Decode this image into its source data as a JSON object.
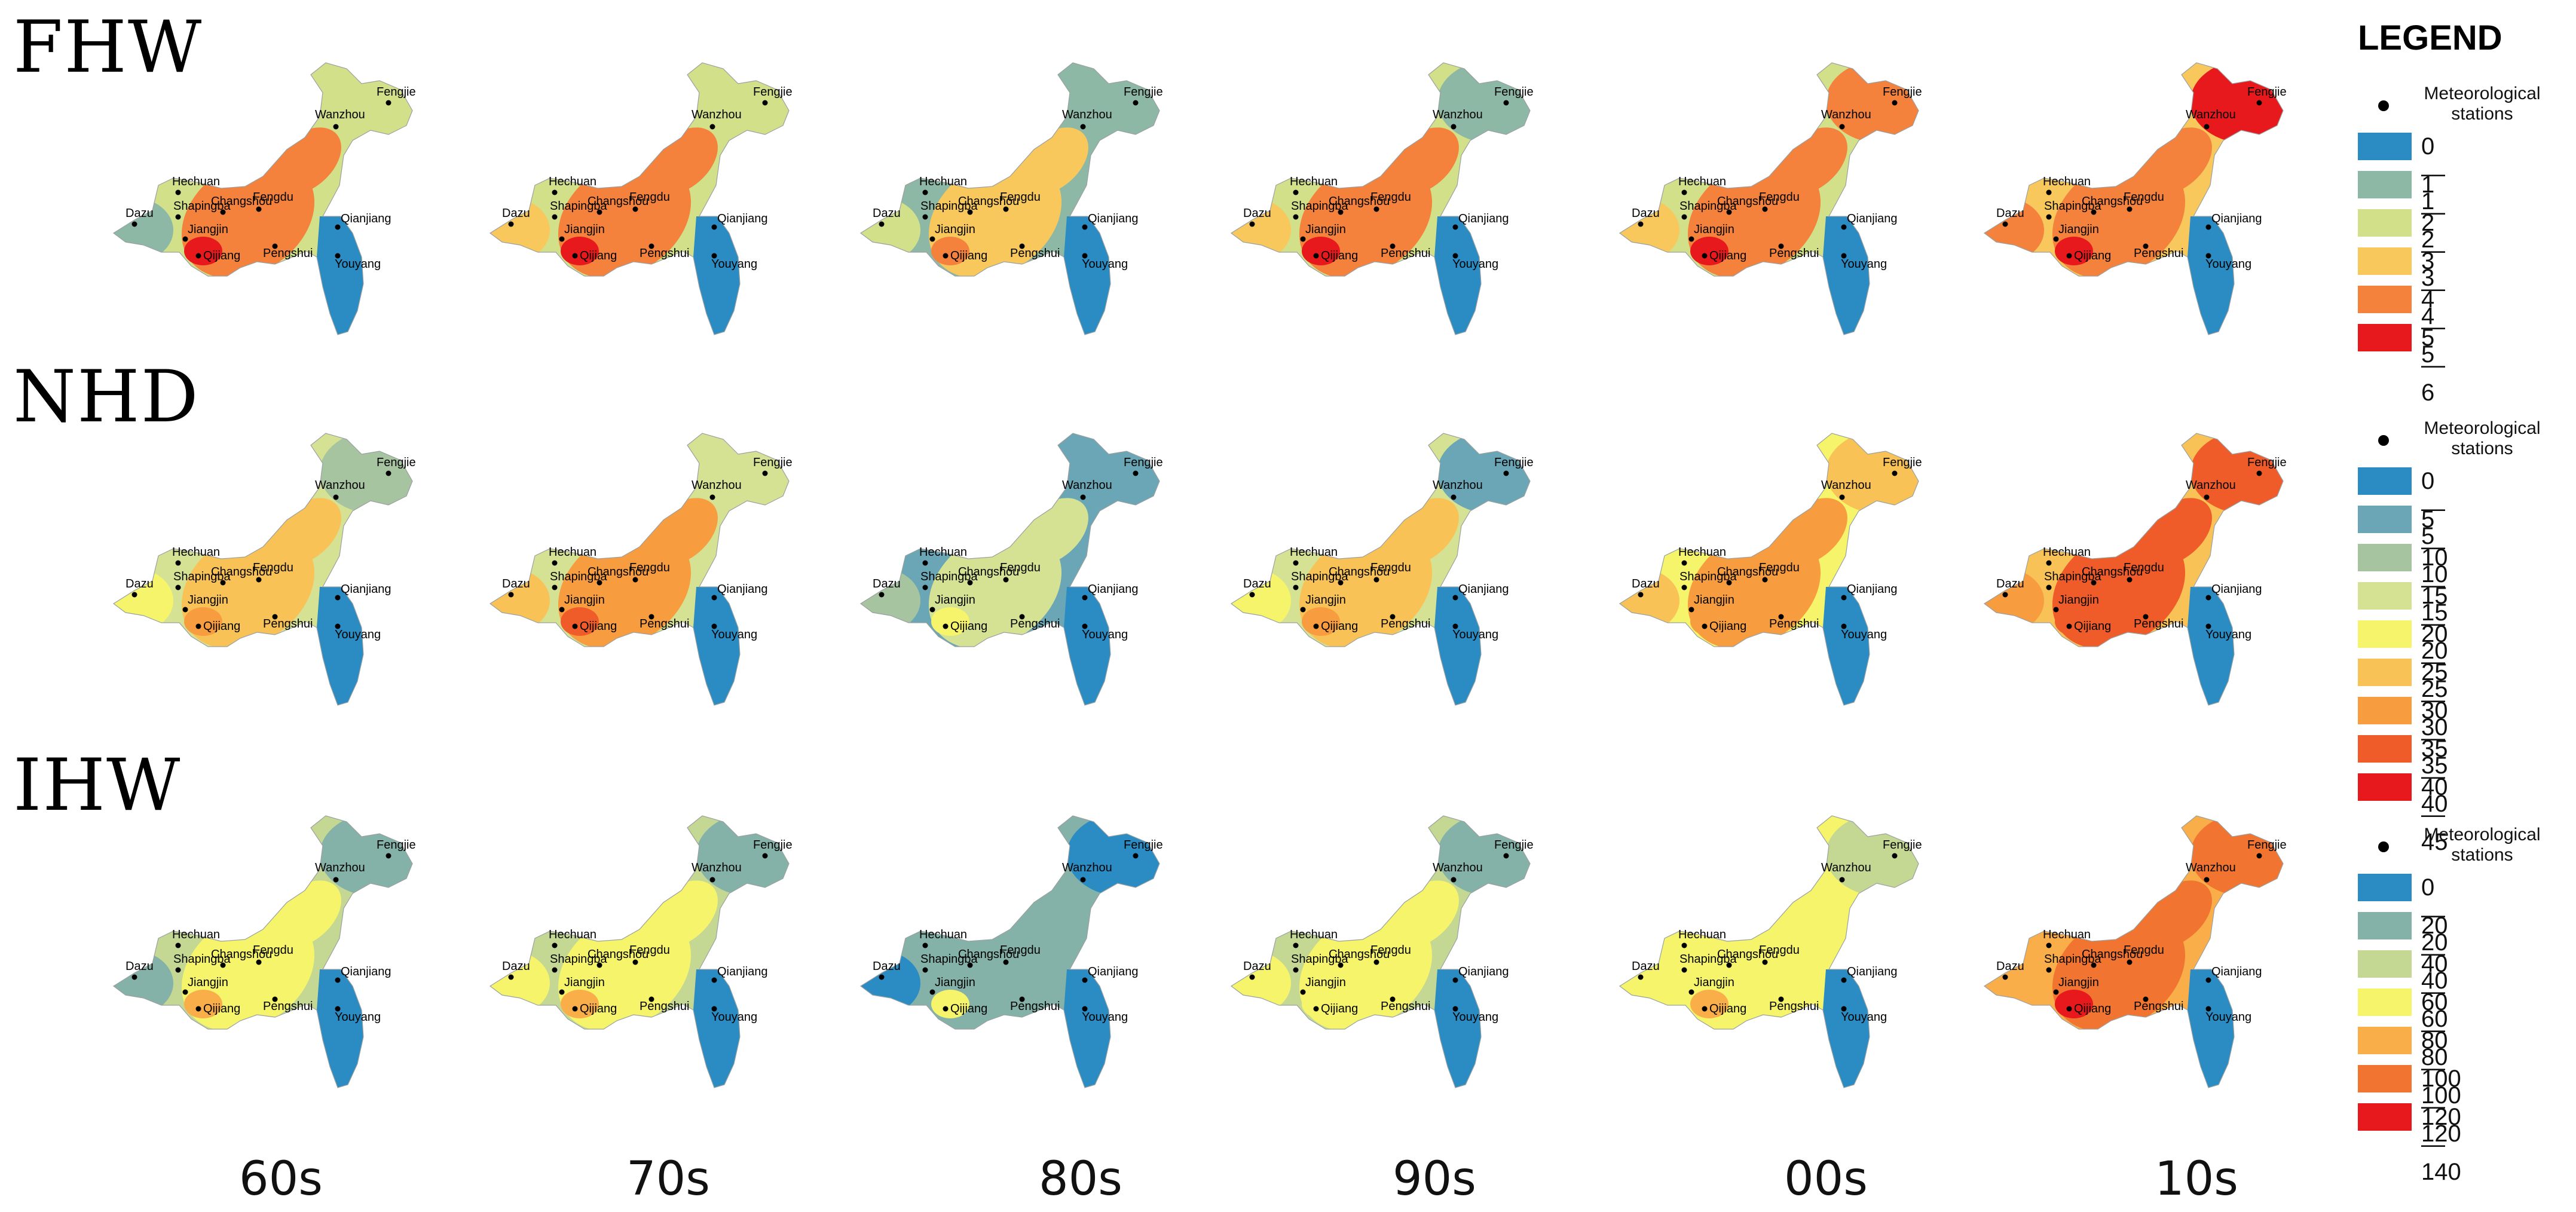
{
  "rows": [
    {
      "key": "FHW",
      "label": "FHW"
    },
    {
      "key": "NHD",
      "label": "NHD"
    },
    {
      "key": "IHW",
      "label": "IHW"
    }
  ],
  "decades": [
    "60s",
    "70s",
    "80s",
    "90s",
    "00s",
    "10s"
  ],
  "legend": {
    "title": "LEGEND",
    "station_label": "Meteorological stations",
    "blocks": [
      {
        "row": "FHW",
        "classes": [
          {
            "label": "0—1",
            "color": "#2b8cc4"
          },
          {
            "label": "1—2",
            "color": "#8db8a6"
          },
          {
            "label": "2—3",
            "color": "#d3e08a"
          },
          {
            "label": "3—4",
            "color": "#f8c85c"
          },
          {
            "label": "4—5",
            "color": "#f4823c"
          },
          {
            "label": "5—6",
            "color": "#e8191c"
          }
        ]
      },
      {
        "row": "NHD",
        "classes": [
          {
            "label": "0—5",
            "color": "#2b8cc4"
          },
          {
            "label": "5—10",
            "color": "#6aa6b6"
          },
          {
            "label": "10—15",
            "color": "#a6c4a0"
          },
          {
            "label": "15—20",
            "color": "#d6e293"
          },
          {
            "label": "20—25",
            "color": "#f6f46a"
          },
          {
            "label": "25—30",
            "color": "#f9c257"
          },
          {
            "label": "30—35",
            "color": "#f79c3f"
          },
          {
            "label": "35—40",
            "color": "#ef5c2a"
          },
          {
            "label": "40—45",
            "color": "#e8191c"
          }
        ]
      },
      {
        "row": "IHW",
        "classes": [
          {
            "label": "0—20",
            "color": "#2b8cc4"
          },
          {
            "label": "20—40",
            "color": "#84b2a8"
          },
          {
            "label": "40—60",
            "color": "#c4d894"
          },
          {
            "label": "60—80",
            "color": "#f6f46a"
          },
          {
            "label": "80—100",
            "color": "#f9ae4a"
          },
          {
            "label": "100—120",
            "color": "#f17530"
          },
          {
            "label": "120—140",
            "color": "#e8191c"
          }
        ]
      }
    ]
  },
  "stations": [
    "Fengjie",
    "Wanzhou",
    "Hechuan",
    "Changshou",
    "Fengdu",
    "Dazu",
    "Shapingba",
    "Jiangjin",
    "Qijiang",
    "Pengshui",
    "Qianjiang",
    "Youyang"
  ],
  "maps": [
    {
      "row": "FHW",
      "decade": "60s",
      "base": 2,
      "west": 1,
      "central": 4,
      "northeast": 2,
      "southeast": 0,
      "hot": 5
    },
    {
      "row": "FHW",
      "decade": "70s",
      "base": 2,
      "west": 3,
      "central": 4,
      "northeast": 2,
      "southeast": 0,
      "hot": 5
    },
    {
      "row": "FHW",
      "decade": "80s",
      "base": 1,
      "west": 2,
      "central": 3,
      "northeast": 1,
      "southeast": 0,
      "hot": 4
    },
    {
      "row": "FHW",
      "decade": "90s",
      "base": 2,
      "west": 3,
      "central": 4,
      "northeast": 1,
      "southeast": 0,
      "hot": 5
    },
    {
      "row": "FHW",
      "decade": "00s",
      "base": 2,
      "west": 3,
      "central": 4,
      "northeast": 4,
      "southeast": 0,
      "hot": 5
    },
    {
      "row": "FHW",
      "decade": "10s",
      "base": 3,
      "west": 4,
      "central": 4,
      "northeast": 5,
      "southeast": 0,
      "hot": 5
    },
    {
      "row": "NHD",
      "decade": "60s",
      "base": 3,
      "west": 4,
      "central": 5,
      "northeast": 2,
      "southeast": 0,
      "hot": 6
    },
    {
      "row": "NHD",
      "decade": "70s",
      "base": 3,
      "west": 5,
      "central": 6,
      "northeast": 3,
      "southeast": 0,
      "hot": 7
    },
    {
      "row": "NHD",
      "decade": "80s",
      "base": 1,
      "west": 2,
      "central": 3,
      "northeast": 1,
      "southeast": 0,
      "hot": 4
    },
    {
      "row": "NHD",
      "decade": "90s",
      "base": 3,
      "west": 4,
      "central": 5,
      "northeast": 1,
      "southeast": 0,
      "hot": 6
    },
    {
      "row": "NHD",
      "decade": "00s",
      "base": 4,
      "west": 5,
      "central": 6,
      "northeast": 5,
      "southeast": 0,
      "hot": 6
    },
    {
      "row": "NHD",
      "decade": "10s",
      "base": 5,
      "west": 6,
      "central": 7,
      "northeast": 7,
      "southeast": 0,
      "hot": 7
    },
    {
      "row": "IHW",
      "decade": "60s",
      "base": 2,
      "west": 1,
      "central": 3,
      "northeast": 1,
      "southeast": 0,
      "hot": 4
    },
    {
      "row": "IHW",
      "decade": "70s",
      "base": 2,
      "west": 3,
      "central": 3,
      "northeast": 1,
      "southeast": 0,
      "hot": 4
    },
    {
      "row": "IHW",
      "decade": "80s",
      "base": 1,
      "west": 0,
      "central": 1,
      "northeast": 0,
      "southeast": 0,
      "hot": 3
    },
    {
      "row": "IHW",
      "decade": "90s",
      "base": 2,
      "west": 3,
      "central": 3,
      "northeast": 1,
      "southeast": 0,
      "hot": 3
    },
    {
      "row": "IHW",
      "decade": "00s",
      "base": 3,
      "west": 3,
      "central": 3,
      "northeast": 2,
      "southeast": 0,
      "hot": 4
    },
    {
      "row": "IHW",
      "decade": "10s",
      "base": 4,
      "west": 4,
      "central": 5,
      "northeast": 5,
      "southeast": 0,
      "hot": 6
    }
  ]
}
